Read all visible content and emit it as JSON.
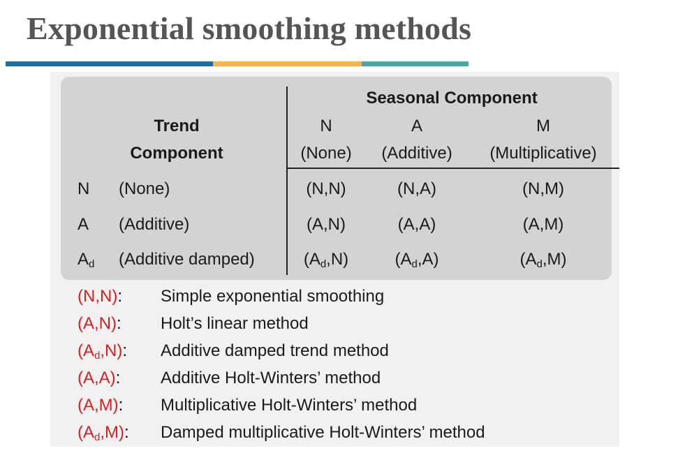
{
  "title": "Exponential smoothing methods",
  "colors": {
    "rule": [
      "#1f6d9c",
      "#f6b44e",
      "#4ea6a0"
    ],
    "legend_code": "#d62020",
    "table_bg": "#d3d3d3",
    "panel_bg": "#f1f1f1"
  },
  "table": {
    "seasonal_header": "Seasonal Component",
    "trend_header_line1": "Trend",
    "trend_header_line2": "Component",
    "seasonal_cols": [
      {
        "code": "N",
        "label": "(None)"
      },
      {
        "code": "A",
        "label": "(Additive)"
      },
      {
        "code": "M",
        "label": "(Multiplicative)"
      }
    ],
    "rows": [
      {
        "code": "N",
        "code_sub": "",
        "label": "(None)",
        "cells": [
          [
            "(N,",
            "",
            "N)"
          ],
          [
            "(N,",
            "",
            "A)"
          ],
          [
            "(N,",
            "",
            "M)"
          ]
        ]
      },
      {
        "code": "A",
        "code_sub": "",
        "label": "(Additive)",
        "cells": [
          [
            "(A,",
            "",
            "N)"
          ],
          [
            "(A,",
            "",
            "A)"
          ],
          [
            "(A,",
            "",
            "M)"
          ]
        ]
      },
      {
        "code": "A",
        "code_sub": "d",
        "label": "(Additive damped)",
        "cells": [
          [
            "(A",
            "d",
            ",N)"
          ],
          [
            "(A",
            "d",
            ",A)"
          ],
          [
            "(A",
            "d",
            ",M)"
          ]
        ]
      }
    ]
  },
  "legend": [
    {
      "code": "(N,N)",
      "code_main": "(N,N)",
      "code_sub": "",
      "code_end": "",
      "desc": "Simple exponential smoothing"
    },
    {
      "code": "(A,N)",
      "code_main": "(A,N)",
      "code_sub": "",
      "code_end": "",
      "desc": "Holt’s linear method"
    },
    {
      "code": "(Ad,N)",
      "code_main": "(A",
      "code_sub": "d",
      "code_end": ",N)",
      "desc": "Additive damped trend method"
    },
    {
      "code": "(A,A)",
      "code_main": "(A,A)",
      "code_sub": "",
      "code_end": "",
      "desc": "Additive Holt-Winters’ method"
    },
    {
      "code": "(A,M)",
      "code_main": "(A,M)",
      "code_sub": "",
      "code_end": "",
      "desc": "Multiplicative Holt-Winters’ method"
    },
    {
      "code": "(Ad,M)",
      "code_main": "(A",
      "code_sub": "d",
      "code_end": ",M)",
      "desc": "Damped multiplicative Holt-Winters’ method"
    }
  ]
}
